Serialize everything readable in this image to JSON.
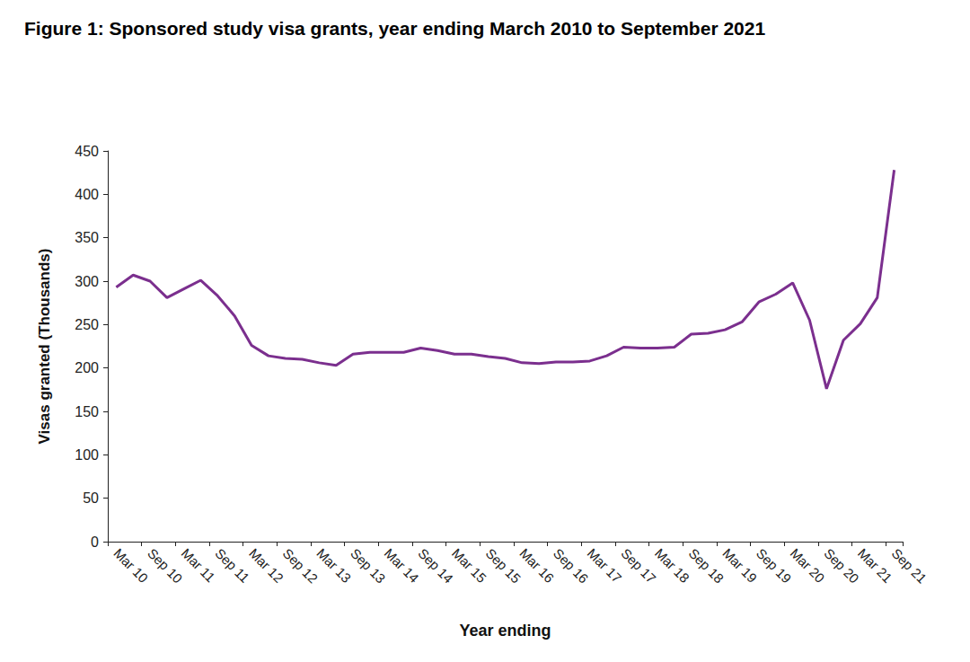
{
  "chart_data": {
    "type": "line",
    "title": "Figure 1: Sponsored study visa grants, year ending March 2010 to September 2021",
    "x_label": "Year ending",
    "y_label": "Visas granted (Thousands)",
    "categories": [
      "Mar 10",
      null,
      "Sep 10",
      null,
      "Mar 11",
      null,
      "Sep 11",
      null,
      "Mar 12",
      null,
      "Sep 12",
      null,
      "Mar 13",
      null,
      "Sep 13",
      null,
      "Mar 14",
      null,
      "Sep 14",
      null,
      "Mar 15",
      null,
      "Sep 15",
      null,
      "Mar 16",
      null,
      "Sep 16",
      null,
      "Mar 17",
      null,
      "Sep 17",
      null,
      "Mar 18",
      null,
      "Sep 18",
      null,
      "Mar 19",
      null,
      "Sep 19",
      null,
      "Mar 20",
      null,
      "Sep 20",
      null,
      "Mar 21",
      null,
      "Sep 21"
    ],
    "values": [
      293,
      307,
      300,
      281,
      291,
      301,
      283,
      260,
      226,
      214,
      211,
      210,
      206,
      203,
      216,
      218,
      218,
      218,
      223,
      220,
      216,
      216,
      213,
      211,
      206,
      205,
      207,
      207,
      208,
      214,
      224,
      223,
      223,
      224,
      239,
      240,
      244,
      253,
      276,
      285,
      298,
      255,
      176,
      232,
      251,
      281,
      428
    ],
    "color": "#7b2f8e",
    "ylim": [
      0,
      450
    ],
    "yticks": [
      0,
      50,
      100,
      150,
      200,
      250,
      300,
      350,
      400,
      450
    ],
    "grid": false
  }
}
